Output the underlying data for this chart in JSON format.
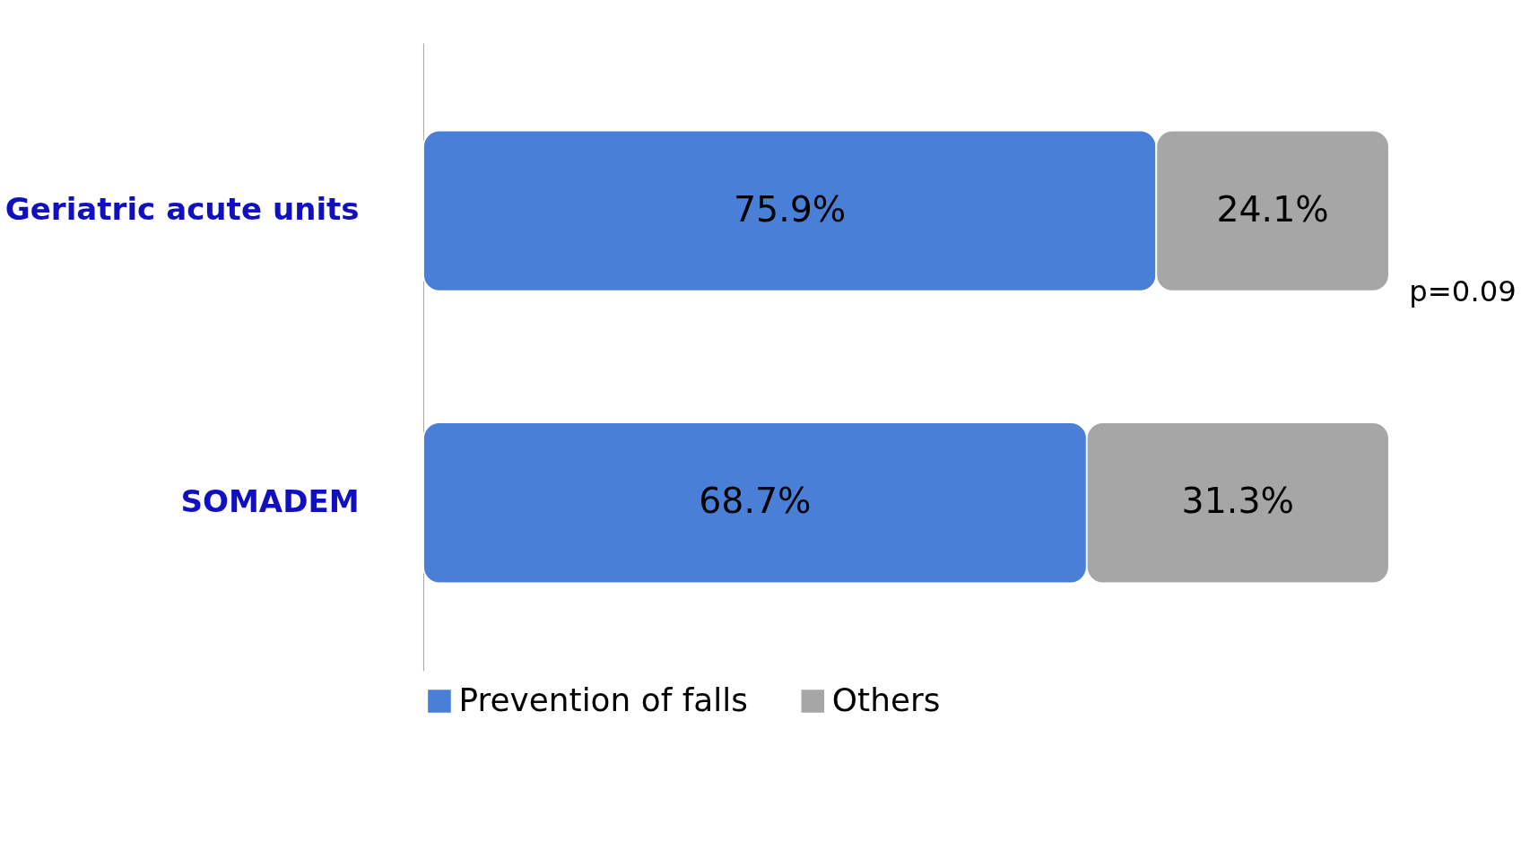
{
  "chart_data": {
    "type": "bar",
    "orientation": "horizontal",
    "stacked": true,
    "categories": [
      "Geriatric acute units",
      "SOMADEM"
    ],
    "series": [
      {
        "name": "Prevention of falls",
        "color": "#4a7fd8",
        "values": [
          75.9,
          68.7
        ],
        "value_labels": [
          "75.9%",
          "68.7%"
        ]
      },
      {
        "name": "Others",
        "color": "#a6a6a6",
        "values": [
          24.1,
          31.3
        ],
        "value_labels": [
          "24.1%",
          "31.3%"
        ]
      }
    ],
    "annotations": [
      "p=0.09"
    ],
    "legend": "bottom"
  }
}
